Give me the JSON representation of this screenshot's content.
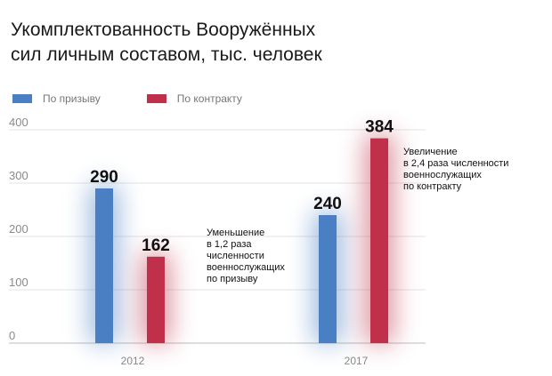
{
  "title_lines": [
    "Укомплектованность Вооружённых",
    "сил личным составом, тыс. человек"
  ],
  "legend": [
    {
      "label": "По призыву",
      "color": "#4a7fc4"
    },
    {
      "label": "По контракту",
      "color": "#c0304a"
    }
  ],
  "notes": {
    "left": [
      "Уменьшение",
      "в 1,2 раза",
      "численности",
      "военнослужащих",
      "по призыву"
    ],
    "right": [
      "Увеличение",
      "в 2,4 раза численности",
      "военнослужащих",
      "по контракту"
    ]
  },
  "chart_data": {
    "type": "bar",
    "categories": [
      "2012",
      "2017"
    ],
    "series": [
      {
        "name": "По призыву",
        "color": "#4a7fc4",
        "values": [
          290,
          240
        ]
      },
      {
        "name": "По контракту",
        "color": "#c0304a",
        "values": [
          162,
          384
        ]
      }
    ],
    "yticks": [
      0,
      100,
      200,
      300,
      400
    ],
    "ylim": [
      0,
      400
    ],
    "grid": true,
    "data_labels": true,
    "legend_position": "top-left"
  }
}
